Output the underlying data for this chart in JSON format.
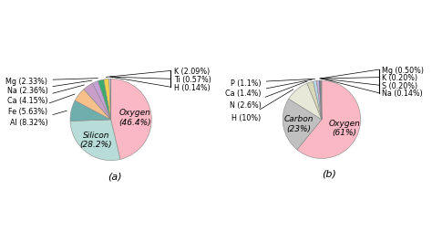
{
  "chart_a": {
    "labels": [
      "Oxygen",
      "Silicon",
      "Al",
      "Fe",
      "Ca",
      "Na",
      "Mg",
      "K",
      "Ti",
      "H"
    ],
    "values": [
      46.4,
      28.2,
      8.32,
      5.63,
      4.15,
      2.36,
      2.33,
      2.09,
      0.57,
      0.14
    ],
    "colors": [
      "#f9b8c4",
      "#b8dcd8",
      "#6eafad",
      "#f5c08a",
      "#c99fc9",
      "#c8a0d8",
      "#3aaa70",
      "#f0d050",
      "#c8cce8",
      "#f0f0f0"
    ],
    "startangle": 90,
    "title": "(a)"
  },
  "chart_b": {
    "labels": [
      "Oxygen",
      "Carbon",
      "H",
      "N",
      "Ca",
      "P",
      "Mg",
      "K",
      "S",
      "Na"
    ],
    "values": [
      61,
      23,
      10,
      2.6,
      1.4,
      1.1,
      0.5,
      0.2,
      0.2,
      0.14
    ],
    "colors": [
      "#f9b8c4",
      "#c0c0c0",
      "#e8e8d8",
      "#d8d8b8",
      "#b8d8e8",
      "#c8b0d8",
      "#1a4a90",
      "#306868",
      "#4888a0",
      "#d8b888"
    ],
    "startangle": 90,
    "title": "(b)"
  },
  "background": "#ffffff"
}
